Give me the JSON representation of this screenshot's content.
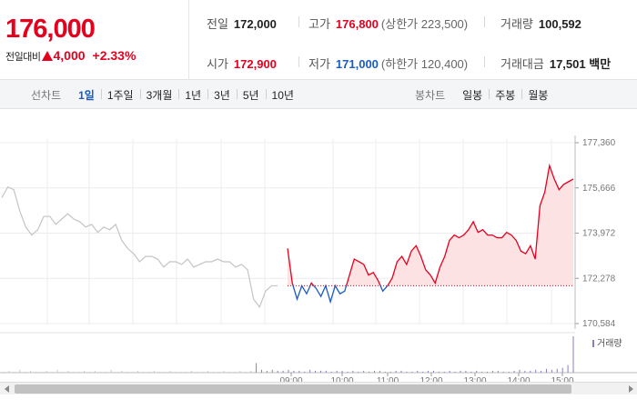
{
  "quote": {
    "price": "176,000",
    "change_label": "전일대비",
    "change_value": "4,000",
    "change_pct": "+2.33%",
    "prev_close": {
      "label": "전일",
      "value": "172,000"
    },
    "high": {
      "label": "고가",
      "value": "176,800",
      "limit_label": "상한가",
      "limit_value": "223,500"
    },
    "volume": {
      "label": "거래량",
      "value": "100,592"
    },
    "open": {
      "label": "시가",
      "value": "172,900"
    },
    "low": {
      "label": "저가",
      "value": "171,000",
      "limit_label": "하한가",
      "limit_value": "120,400"
    },
    "amount": {
      "label": "거래대금",
      "value": "17,501",
      "unit": "백만"
    }
  },
  "tabs": {
    "line_title": "선차트",
    "line_items": [
      {
        "label": "1일",
        "active": true
      },
      {
        "label": "1주일",
        "active": false
      },
      {
        "label": "3개월",
        "active": false
      },
      {
        "label": "1년",
        "active": false
      },
      {
        "label": "3년",
        "active": false
      },
      {
        "label": "5년",
        "active": false
      },
      {
        "label": "10년",
        "active": false
      }
    ],
    "candle_title": "봉차트",
    "candle_items": [
      {
        "label": "일봉"
      },
      {
        "label": "주봉"
      },
      {
        "label": "월봉"
      }
    ]
  },
  "colors": {
    "up": "#e5001e",
    "down": "#1a5bc4",
    "prev_day": "#c4c4c4",
    "area_fill": "#fde2e4",
    "volume": "#8e7cc3"
  },
  "chart_data": {
    "type": "line",
    "title": "",
    "reference_price": 172000,
    "ylim": [
      170584,
      177360
    ],
    "yticks": [
      177360,
      175666,
      173972,
      172278,
      170584
    ],
    "x_tick_labels": [
      "09:00",
      "10:00",
      "11:00",
      "12:00",
      "13:00",
      "14:00",
      "15:00"
    ],
    "previous_day": {
      "name": "",
      "values": [
        175300,
        175700,
        175600,
        174800,
        174200,
        173900,
        174100,
        174600,
        174600,
        174300,
        174500,
        174700,
        174500,
        174400,
        174200,
        174300,
        174000,
        174200,
        174100,
        174300,
        173700,
        173400,
        173200,
        172900,
        173100,
        173100,
        173000,
        172700,
        172900,
        172900,
        172800,
        173000,
        172700,
        172800,
        172900,
        172900,
        173000,
        172900,
        172900,
        172700,
        172800,
        172600,
        171500,
        171200,
        171800,
        172000,
        172000
      ]
    },
    "today": {
      "name": "",
      "values": [
        173400,
        172100,
        171500,
        172000,
        171700,
        172100,
        171900,
        171600,
        172000,
        171400,
        172000,
        171700,
        171800,
        172400,
        173000,
        172900,
        172800,
        172400,
        172500,
        172200,
        171800,
        172000,
        172300,
        172900,
        173100,
        172800,
        173300,
        173500,
        173100,
        172600,
        172400,
        172100,
        172700,
        173100,
        173700,
        173900,
        173800,
        173900,
        174100,
        174400,
        174000,
        174100,
        173900,
        173900,
        173800,
        173800,
        174000,
        173900,
        173700,
        173300,
        173200,
        173500,
        173000,
        175000,
        175500,
        176500,
        176000,
        175600,
        175800,
        175900,
        176000
      ]
    },
    "volume_label": "거래량",
    "volume": [
      1,
      2,
      1,
      3,
      1,
      2,
      1,
      1,
      2,
      1,
      3,
      1,
      2,
      1,
      1,
      2,
      1,
      2,
      1,
      1,
      3,
      1,
      2,
      1,
      1,
      2,
      1,
      1,
      2,
      1,
      1,
      2,
      1,
      1,
      1,
      2,
      1,
      1,
      2,
      1,
      1,
      2,
      1,
      1,
      2,
      1,
      2,
      10,
      3,
      2,
      3,
      2,
      2,
      3,
      2,
      2,
      1,
      3,
      2,
      2,
      2,
      1,
      2,
      2,
      1,
      2,
      1,
      2,
      1,
      2,
      2,
      1,
      1,
      2,
      2,
      1,
      1,
      2,
      1,
      2,
      2,
      1,
      1,
      2,
      1,
      2,
      2,
      1,
      2,
      1,
      1,
      2,
      2,
      1,
      1,
      2,
      3,
      2,
      2,
      3,
      2,
      4,
      3,
      4,
      5,
      8,
      38
    ]
  }
}
